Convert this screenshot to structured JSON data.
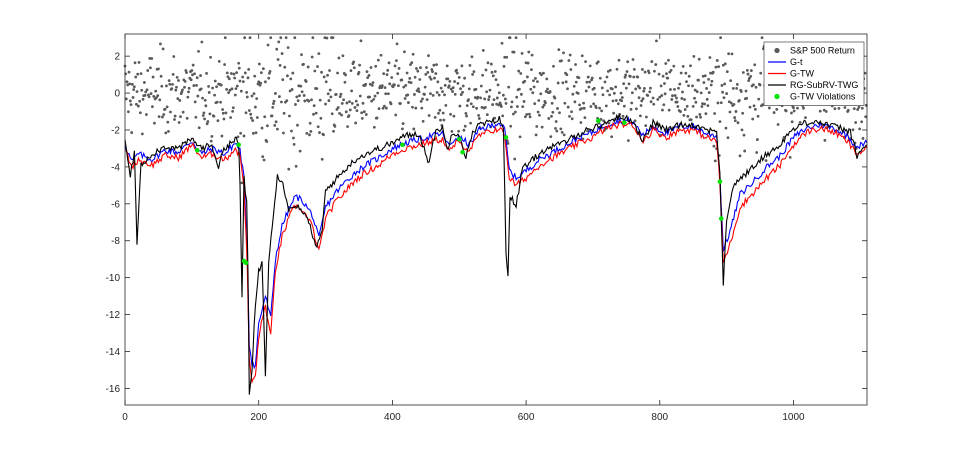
{
  "chart_data": {
    "type": "line",
    "title": "",
    "xlabel": "",
    "ylabel": "",
    "xlim": [
      0,
      1110
    ],
    "ylim": [
      -16.9,
      3.2
    ],
    "xticks": [
      0,
      200,
      400,
      600,
      800,
      1000
    ],
    "xtick_labels": [
      "0",
      "200",
      "400",
      "600",
      "800",
      "1000"
    ],
    "yticks": [
      2,
      0,
      -2,
      -4,
      -6,
      -8,
      -10,
      -12,
      -14,
      -16
    ],
    "ytick_labels": [
      "2",
      "0",
      "-2",
      "-4",
      "-6",
      "-8",
      "-10",
      "-12",
      "-14",
      "-16"
    ],
    "grid": false,
    "legend_position": "top-right",
    "returns": {
      "name": "S&P 500 Return",
      "color": "#5a5a5a",
      "note_count": 1110
    },
    "series": [
      {
        "name": "G-t",
        "color": "#0000ff",
        "points": [
          [
            0,
            -2.8
          ],
          [
            10,
            -3.7
          ],
          [
            20,
            -3.3
          ],
          [
            40,
            -3.6
          ],
          [
            60,
            -3.1
          ],
          [
            80,
            -3.2
          ],
          [
            100,
            -2.6
          ],
          [
            115,
            -3.3
          ],
          [
            130,
            -3.0
          ],
          [
            150,
            -3.3
          ],
          [
            165,
            -2.7
          ],
          [
            172,
            -3.1
          ],
          [
            178,
            -4.6
          ],
          [
            183,
            -8.8
          ],
          [
            186,
            -13.6
          ],
          [
            190,
            -14.6
          ],
          [
            195,
            -14.8
          ],
          [
            200,
            -12.5
          ],
          [
            210,
            -11.0
          ],
          [
            218,
            -12.2
          ],
          [
            225,
            -9.0
          ],
          [
            235,
            -7.2
          ],
          [
            245,
            -6.3
          ],
          [
            255,
            -5.6
          ],
          [
            265,
            -5.8
          ],
          [
            280,
            -6.6
          ],
          [
            290,
            -7.9
          ],
          [
            300,
            -6.2
          ],
          [
            315,
            -5.4
          ],
          [
            330,
            -4.8
          ],
          [
            345,
            -4.3
          ],
          [
            360,
            -3.9
          ],
          [
            380,
            -3.5
          ],
          [
            400,
            -3.0
          ],
          [
            420,
            -2.7
          ],
          [
            440,
            -2.5
          ],
          [
            460,
            -2.3
          ],
          [
            475,
            -2.2
          ],
          [
            485,
            -2.9
          ],
          [
            495,
            -2.4
          ],
          [
            505,
            -2.5
          ],
          [
            515,
            -2.8
          ],
          [
            530,
            -2.0
          ],
          [
            545,
            -1.8
          ],
          [
            560,
            -1.6
          ],
          [
            568,
            -2.0
          ],
          [
            575,
            -4.2
          ],
          [
            585,
            -4.6
          ],
          [
            600,
            -4.2
          ],
          [
            620,
            -3.6
          ],
          [
            640,
            -3.2
          ],
          [
            660,
            -2.8
          ],
          [
            680,
            -2.4
          ],
          [
            700,
            -2.1
          ],
          [
            720,
            -1.7
          ],
          [
            740,
            -1.5
          ],
          [
            755,
            -1.5
          ],
          [
            765,
            -1.8
          ],
          [
            775,
            -2.3
          ],
          [
            790,
            -1.8
          ],
          [
            810,
            -2.2
          ],
          [
            830,
            -1.8
          ],
          [
            850,
            -1.8
          ],
          [
            870,
            -2.2
          ],
          [
            885,
            -2.3
          ],
          [
            890,
            -4.5
          ],
          [
            895,
            -8.5
          ],
          [
            905,
            -7.5
          ],
          [
            920,
            -5.5
          ],
          [
            940,
            -4.8
          ],
          [
            960,
            -4.0
          ],
          [
            980,
            -3.4
          ],
          [
            1000,
            -2.4
          ],
          [
            1020,
            -1.9
          ],
          [
            1040,
            -1.7
          ],
          [
            1060,
            -1.9
          ],
          [
            1080,
            -2.3
          ],
          [
            1095,
            -2.9
          ],
          [
            1110,
            -2.7
          ]
        ]
      },
      {
        "name": "G-TW",
        "color": "#ff0000",
        "points": [
          [
            0,
            -3.0
          ],
          [
            10,
            -4.0
          ],
          [
            20,
            -3.6
          ],
          [
            40,
            -3.9
          ],
          [
            60,
            -3.4
          ],
          [
            80,
            -3.5
          ],
          [
            100,
            -2.8
          ],
          [
            115,
            -3.5
          ],
          [
            130,
            -3.3
          ],
          [
            150,
            -3.6
          ],
          [
            165,
            -3.0
          ],
          [
            172,
            -3.4
          ],
          [
            178,
            -5.0
          ],
          [
            183,
            -9.5
          ],
          [
            186,
            -14.5
          ],
          [
            190,
            -15.6
          ],
          [
            195,
            -15.4
          ],
          [
            200,
            -13.2
          ],
          [
            210,
            -11.5
          ],
          [
            218,
            -13.2
          ],
          [
            225,
            -9.6
          ],
          [
            235,
            -7.8
          ],
          [
            245,
            -6.8
          ],
          [
            255,
            -6.1
          ],
          [
            265,
            -6.3
          ],
          [
            280,
            -7.2
          ],
          [
            290,
            -8.6
          ],
          [
            300,
            -6.8
          ],
          [
            315,
            -5.9
          ],
          [
            330,
            -5.3
          ],
          [
            345,
            -4.7
          ],
          [
            360,
            -4.3
          ],
          [
            380,
            -3.9
          ],
          [
            400,
            -3.3
          ],
          [
            420,
            -3.0
          ],
          [
            440,
            -2.8
          ],
          [
            460,
            -2.6
          ],
          [
            475,
            -2.5
          ],
          [
            485,
            -3.2
          ],
          [
            495,
            -2.7
          ],
          [
            505,
            -2.8
          ],
          [
            515,
            -3.1
          ],
          [
            530,
            -2.3
          ],
          [
            545,
            -2.1
          ],
          [
            560,
            -1.9
          ],
          [
            568,
            -2.3
          ],
          [
            575,
            -4.6
          ],
          [
            585,
            -5.0
          ],
          [
            600,
            -4.6
          ],
          [
            620,
            -3.9
          ],
          [
            640,
            -3.5
          ],
          [
            660,
            -3.1
          ],
          [
            680,
            -2.7
          ],
          [
            700,
            -2.4
          ],
          [
            720,
            -1.9
          ],
          [
            740,
            -1.7
          ],
          [
            755,
            -1.7
          ],
          [
            765,
            -2.0
          ],
          [
            775,
            -2.6
          ],
          [
            790,
            -2.0
          ],
          [
            810,
            -2.4
          ],
          [
            830,
            -2.0
          ],
          [
            850,
            -2.0
          ],
          [
            870,
            -2.4
          ],
          [
            885,
            -2.6
          ],
          [
            890,
            -4.9
          ],
          [
            895,
            -9.2
          ],
          [
            905,
            -8.2
          ],
          [
            920,
            -6.2
          ],
          [
            940,
            -5.4
          ],
          [
            960,
            -4.6
          ],
          [
            980,
            -3.9
          ],
          [
            1000,
            -2.8
          ],
          [
            1020,
            -2.1
          ],
          [
            1040,
            -1.9
          ],
          [
            1060,
            -2.1
          ],
          [
            1080,
            -2.6
          ],
          [
            1095,
            -3.3
          ],
          [
            1110,
            -3.0
          ]
        ]
      },
      {
        "name": "RG-SubRV-TWG",
        "color": "#000000",
        "points": [
          [
            0,
            -2.6
          ],
          [
            8,
            -4.5
          ],
          [
            14,
            -3.2
          ],
          [
            18,
            -8.1
          ],
          [
            24,
            -3.9
          ],
          [
            40,
            -3.3
          ],
          [
            60,
            -2.9
          ],
          [
            80,
            -3.0
          ],
          [
            100,
            -2.5
          ],
          [
            115,
            -3.0
          ],
          [
            130,
            -2.8
          ],
          [
            140,
            -4.0
          ],
          [
            148,
            -3.0
          ],
          [
            155,
            -2.8
          ],
          [
            165,
            -2.5
          ],
          [
            170,
            -2.7
          ],
          [
            172,
            -5.0
          ],
          [
            175,
            -11.1
          ],
          [
            178,
            -4.5
          ],
          [
            182,
            -6.0
          ],
          [
            184,
            -9.8
          ],
          [
            186,
            -16.5
          ],
          [
            190,
            -15.0
          ],
          [
            195,
            -11.5
          ],
          [
            200,
            -9.6
          ],
          [
            205,
            -9.2
          ],
          [
            210,
            -15.2
          ],
          [
            215,
            -9.0
          ],
          [
            222,
            -6.5
          ],
          [
            228,
            -4.5
          ],
          [
            236,
            -4.8
          ],
          [
            245,
            -6.4
          ],
          [
            255,
            -6.0
          ],
          [
            265,
            -6.5
          ],
          [
            275,
            -6.9
          ],
          [
            285,
            -8.4
          ],
          [
            295,
            -7.5
          ],
          [
            300,
            -5.3
          ],
          [
            315,
            -4.7
          ],
          [
            330,
            -4.1
          ],
          [
            345,
            -3.6
          ],
          [
            360,
            -3.3
          ],
          [
            380,
            -3.0
          ],
          [
            400,
            -2.7
          ],
          [
            420,
            -2.3
          ],
          [
            440,
            -2.2
          ],
          [
            455,
            -3.8
          ],
          [
            465,
            -2.0
          ],
          [
            475,
            -1.9
          ],
          [
            482,
            -3.1
          ],
          [
            490,
            -2.1
          ],
          [
            500,
            -2.2
          ],
          [
            510,
            -3.5
          ],
          [
            520,
            -2.1
          ],
          [
            530,
            -1.7
          ],
          [
            545,
            -1.6
          ],
          [
            560,
            -1.4
          ],
          [
            566,
            -2.0
          ],
          [
            570,
            -8.5
          ],
          [
            573,
            -10.0
          ],
          [
            576,
            -5.5
          ],
          [
            585,
            -6.1
          ],
          [
            595,
            -4.1
          ],
          [
            610,
            -3.6
          ],
          [
            630,
            -3.0
          ],
          [
            650,
            -2.8
          ],
          [
            670,
            -2.4
          ],
          [
            690,
            -2.0
          ],
          [
            710,
            -1.8
          ],
          [
            730,
            -1.4
          ],
          [
            745,
            -1.3
          ],
          [
            760,
            -1.5
          ],
          [
            775,
            -2.6
          ],
          [
            790,
            -1.6
          ],
          [
            810,
            -2.0
          ],
          [
            830,
            -1.7
          ],
          [
            850,
            -1.7
          ],
          [
            870,
            -2.0
          ],
          [
            885,
            -2.0
          ],
          [
            890,
            -4.5
          ],
          [
            895,
            -10.5
          ],
          [
            900,
            -6.8
          ],
          [
            910,
            -5.0
          ],
          [
            925,
            -4.5
          ],
          [
            940,
            -4.0
          ],
          [
            960,
            -3.3
          ],
          [
            975,
            -3.0
          ],
          [
            990,
            -2.3
          ],
          [
            1010,
            -1.7
          ],
          [
            1030,
            -1.5
          ],
          [
            1050,
            -1.7
          ],
          [
            1070,
            -1.9
          ],
          [
            1085,
            -2.1
          ],
          [
            1095,
            -3.4
          ],
          [
            1110,
            -2.8
          ]
        ]
      },
      {
        "name": "G-TW Violations",
        "color": "#00e400",
        "type": "scatter",
        "points": [
          [
            108,
            -3.1
          ],
          [
            170,
            -2.8
          ],
          [
            178,
            -9.1
          ],
          [
            181,
            -9.2
          ],
          [
            415,
            -2.8
          ],
          [
            500,
            -2.5
          ],
          [
            505,
            -3.2
          ],
          [
            570,
            -2.4
          ],
          [
            708,
            -1.5
          ],
          [
            747,
            -1.6
          ],
          [
            890,
            -4.8
          ],
          [
            892,
            -6.8
          ]
        ]
      }
    ]
  }
}
